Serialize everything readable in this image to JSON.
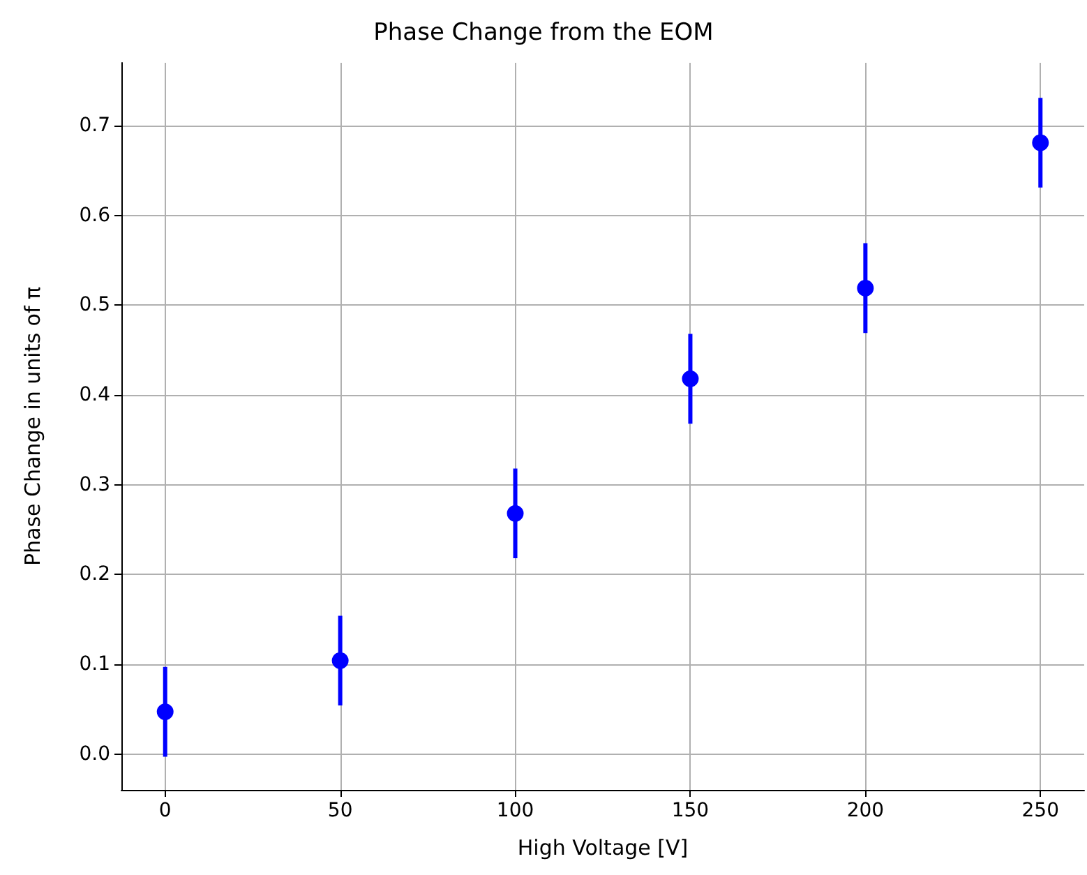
{
  "chart_data": {
    "type": "scatter",
    "title": "Phase Change from the EOM",
    "xlabel": "High Voltage [V]",
    "ylabel": "Phase Change in units of π",
    "x": [
      0,
      50,
      100,
      150,
      200,
      250
    ],
    "series": [
      {
        "color": "#0000ff",
        "values": [
          0.047,
          0.104,
          0.268,
          0.418,
          0.519,
          0.681
        ],
        "errors": [
          0.05,
          0.05,
          0.05,
          0.05,
          0.05,
          0.05
        ]
      }
    ],
    "xlim": [
      -12.5,
      262.5
    ],
    "xticks": [
      0,
      50,
      100,
      150,
      200,
      250
    ],
    "ylim": [
      -0.04,
      0.77
    ],
    "yticks": [
      {
        "value": 0,
        "label": "0.0"
      },
      0.1,
      0.2,
      0.3,
      0.4,
      0.5,
      0.6,
      0.7
    ],
    "grid": true,
    "marker": "circle"
  }
}
